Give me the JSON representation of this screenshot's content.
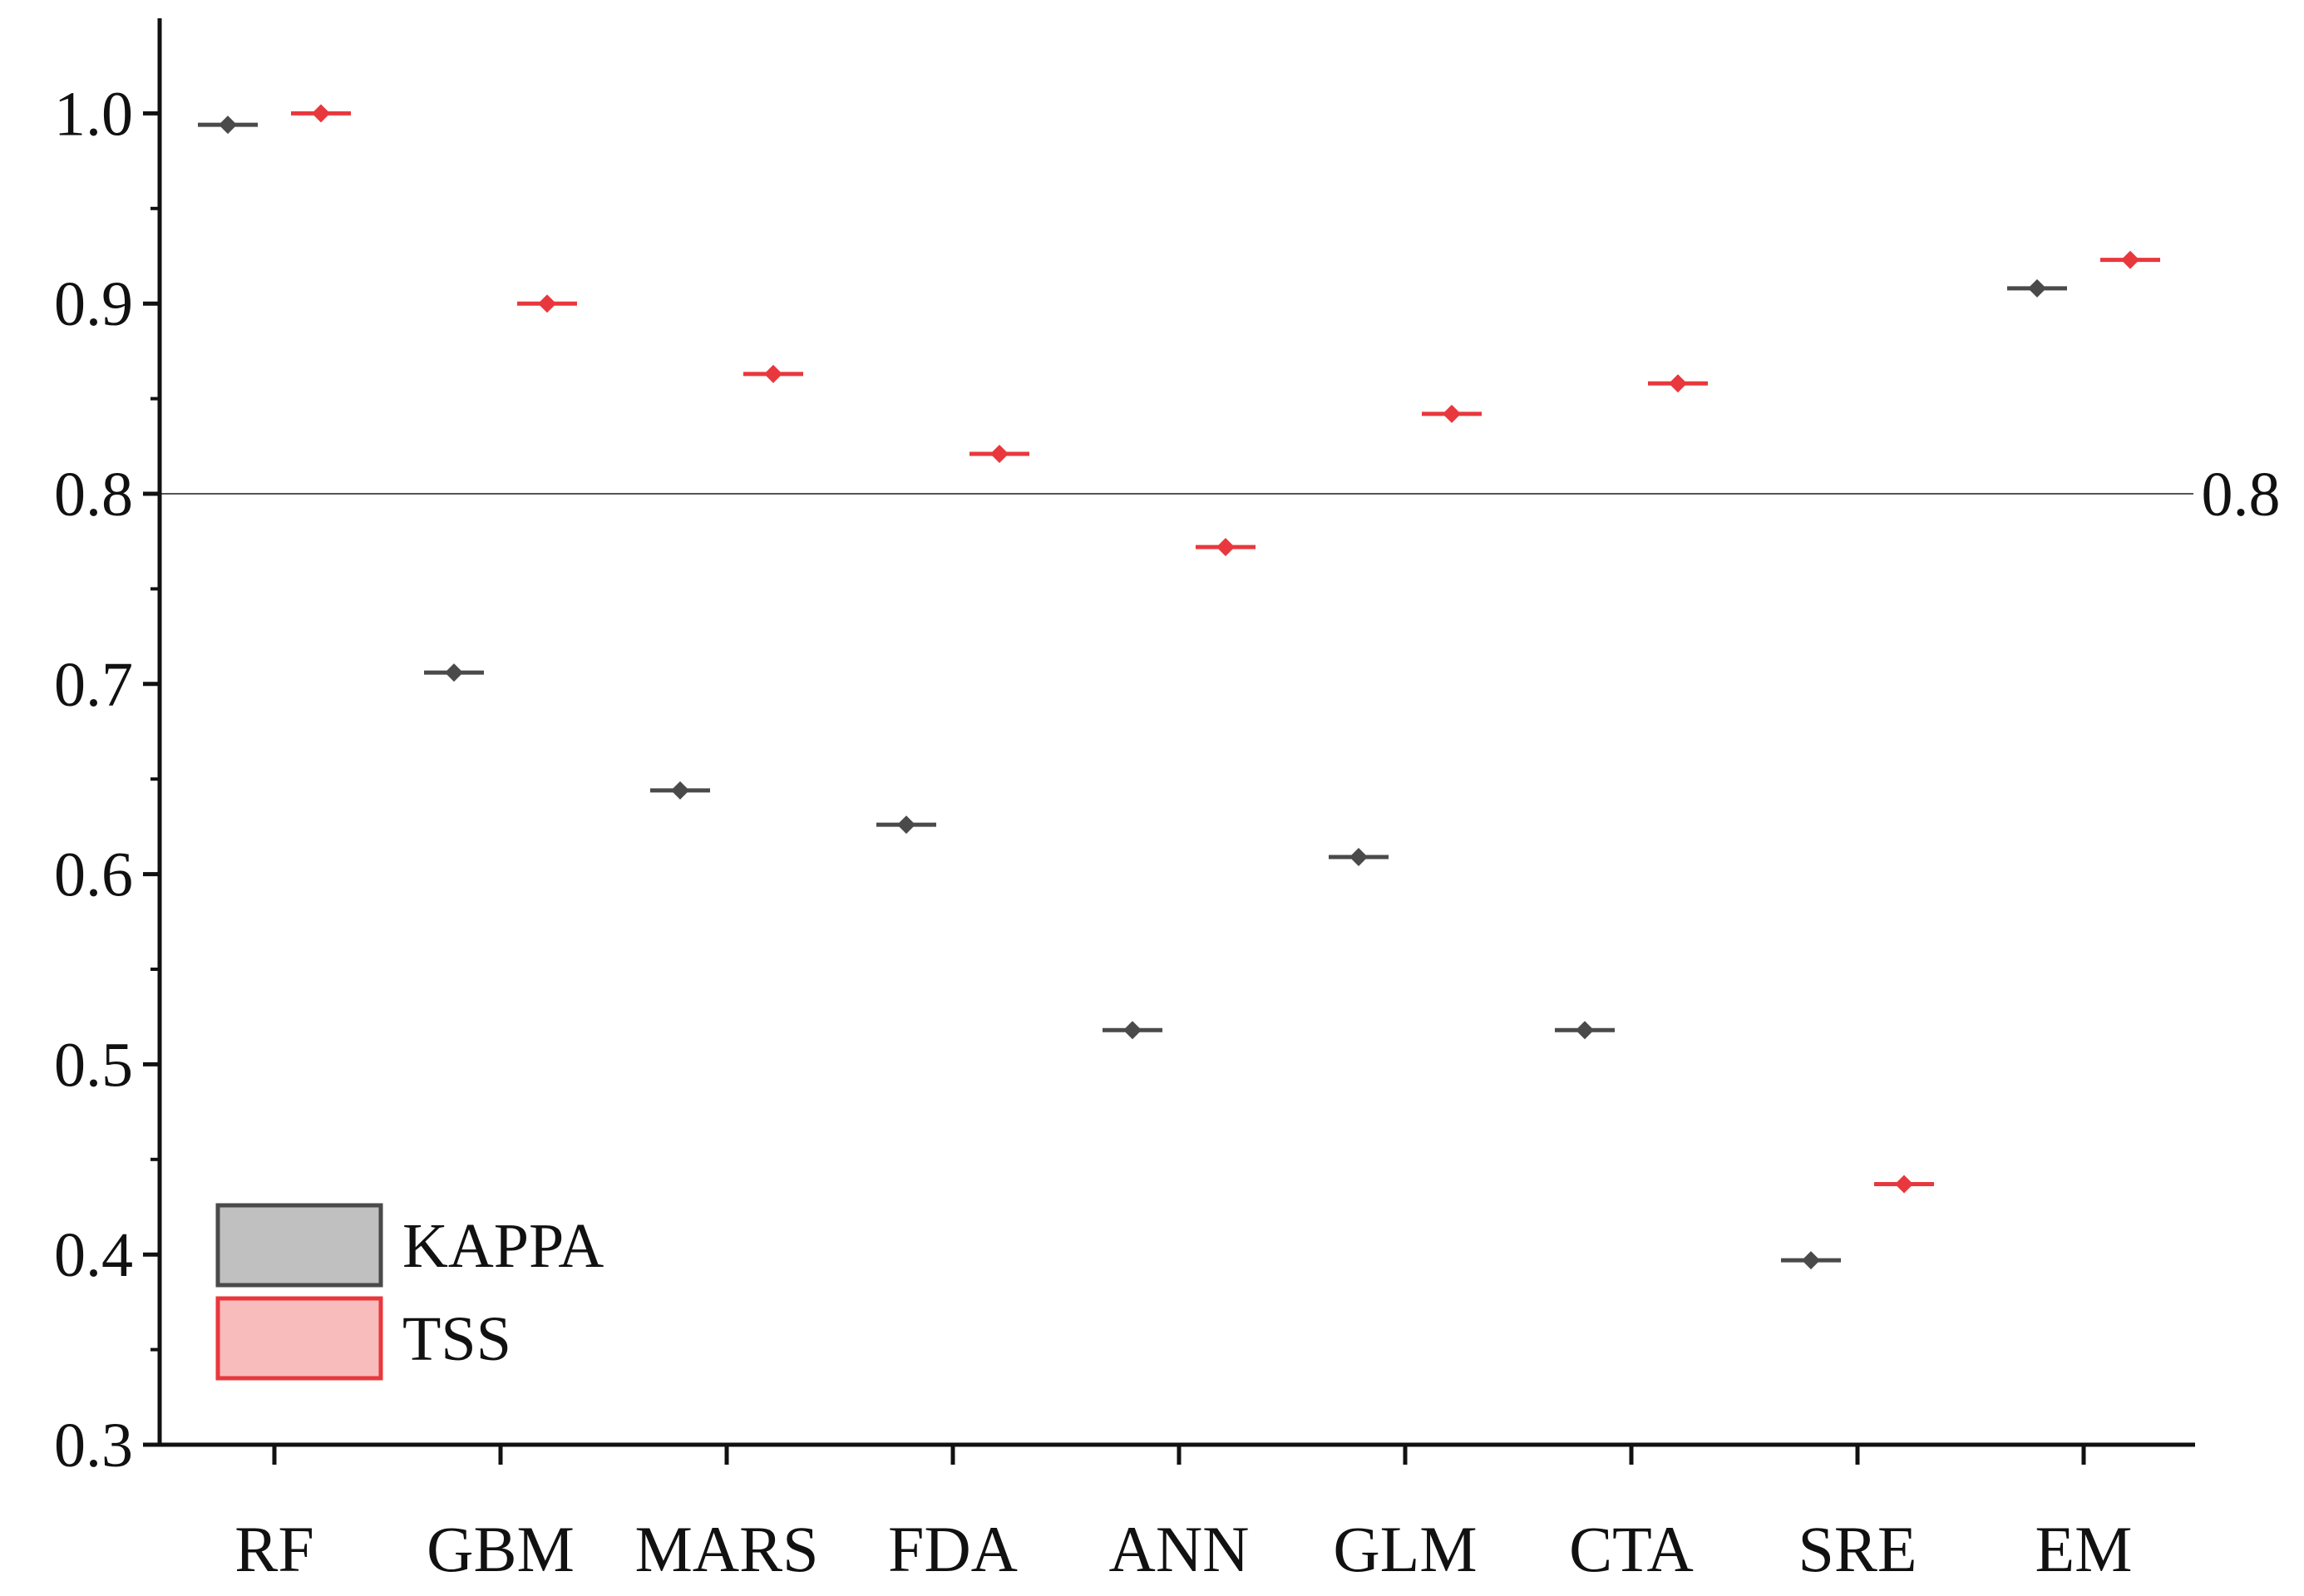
{
  "chart_data": {
    "type": "scatter",
    "title": "",
    "xlabel": "",
    "ylabel": "",
    "categories": [
      "RF",
      "GBM",
      "MARS",
      "FDA",
      "ANN",
      "GLM",
      "CTA",
      "SRE",
      "EM"
    ],
    "ylim": [
      0.3,
      1.05
    ],
    "yticks": [
      "0.3",
      "0.4",
      "0.5",
      "0.6",
      "0.7",
      "0.8",
      "0.9",
      "1.0"
    ],
    "series": [
      {
        "name": "KAPPA",
        "color": "#4a4a4a",
        "fill": "#c0c0c0",
        "values": [
          0.994,
          0.706,
          0.644,
          0.626,
          0.518,
          0.609,
          0.518,
          0.397,
          0.908
        ]
      },
      {
        "name": "TSS",
        "color": "#e8383d",
        "fill": "#f9bcbc",
        "values": [
          1.0,
          0.9,
          0.863,
          0.821,
          0.772,
          0.842,
          0.858,
          0.437,
          0.923
        ]
      }
    ],
    "reference_line": {
      "value": 0.8,
      "label": "0.8"
    },
    "legend": {
      "position": "bottom-left"
    },
    "grid": false
  }
}
